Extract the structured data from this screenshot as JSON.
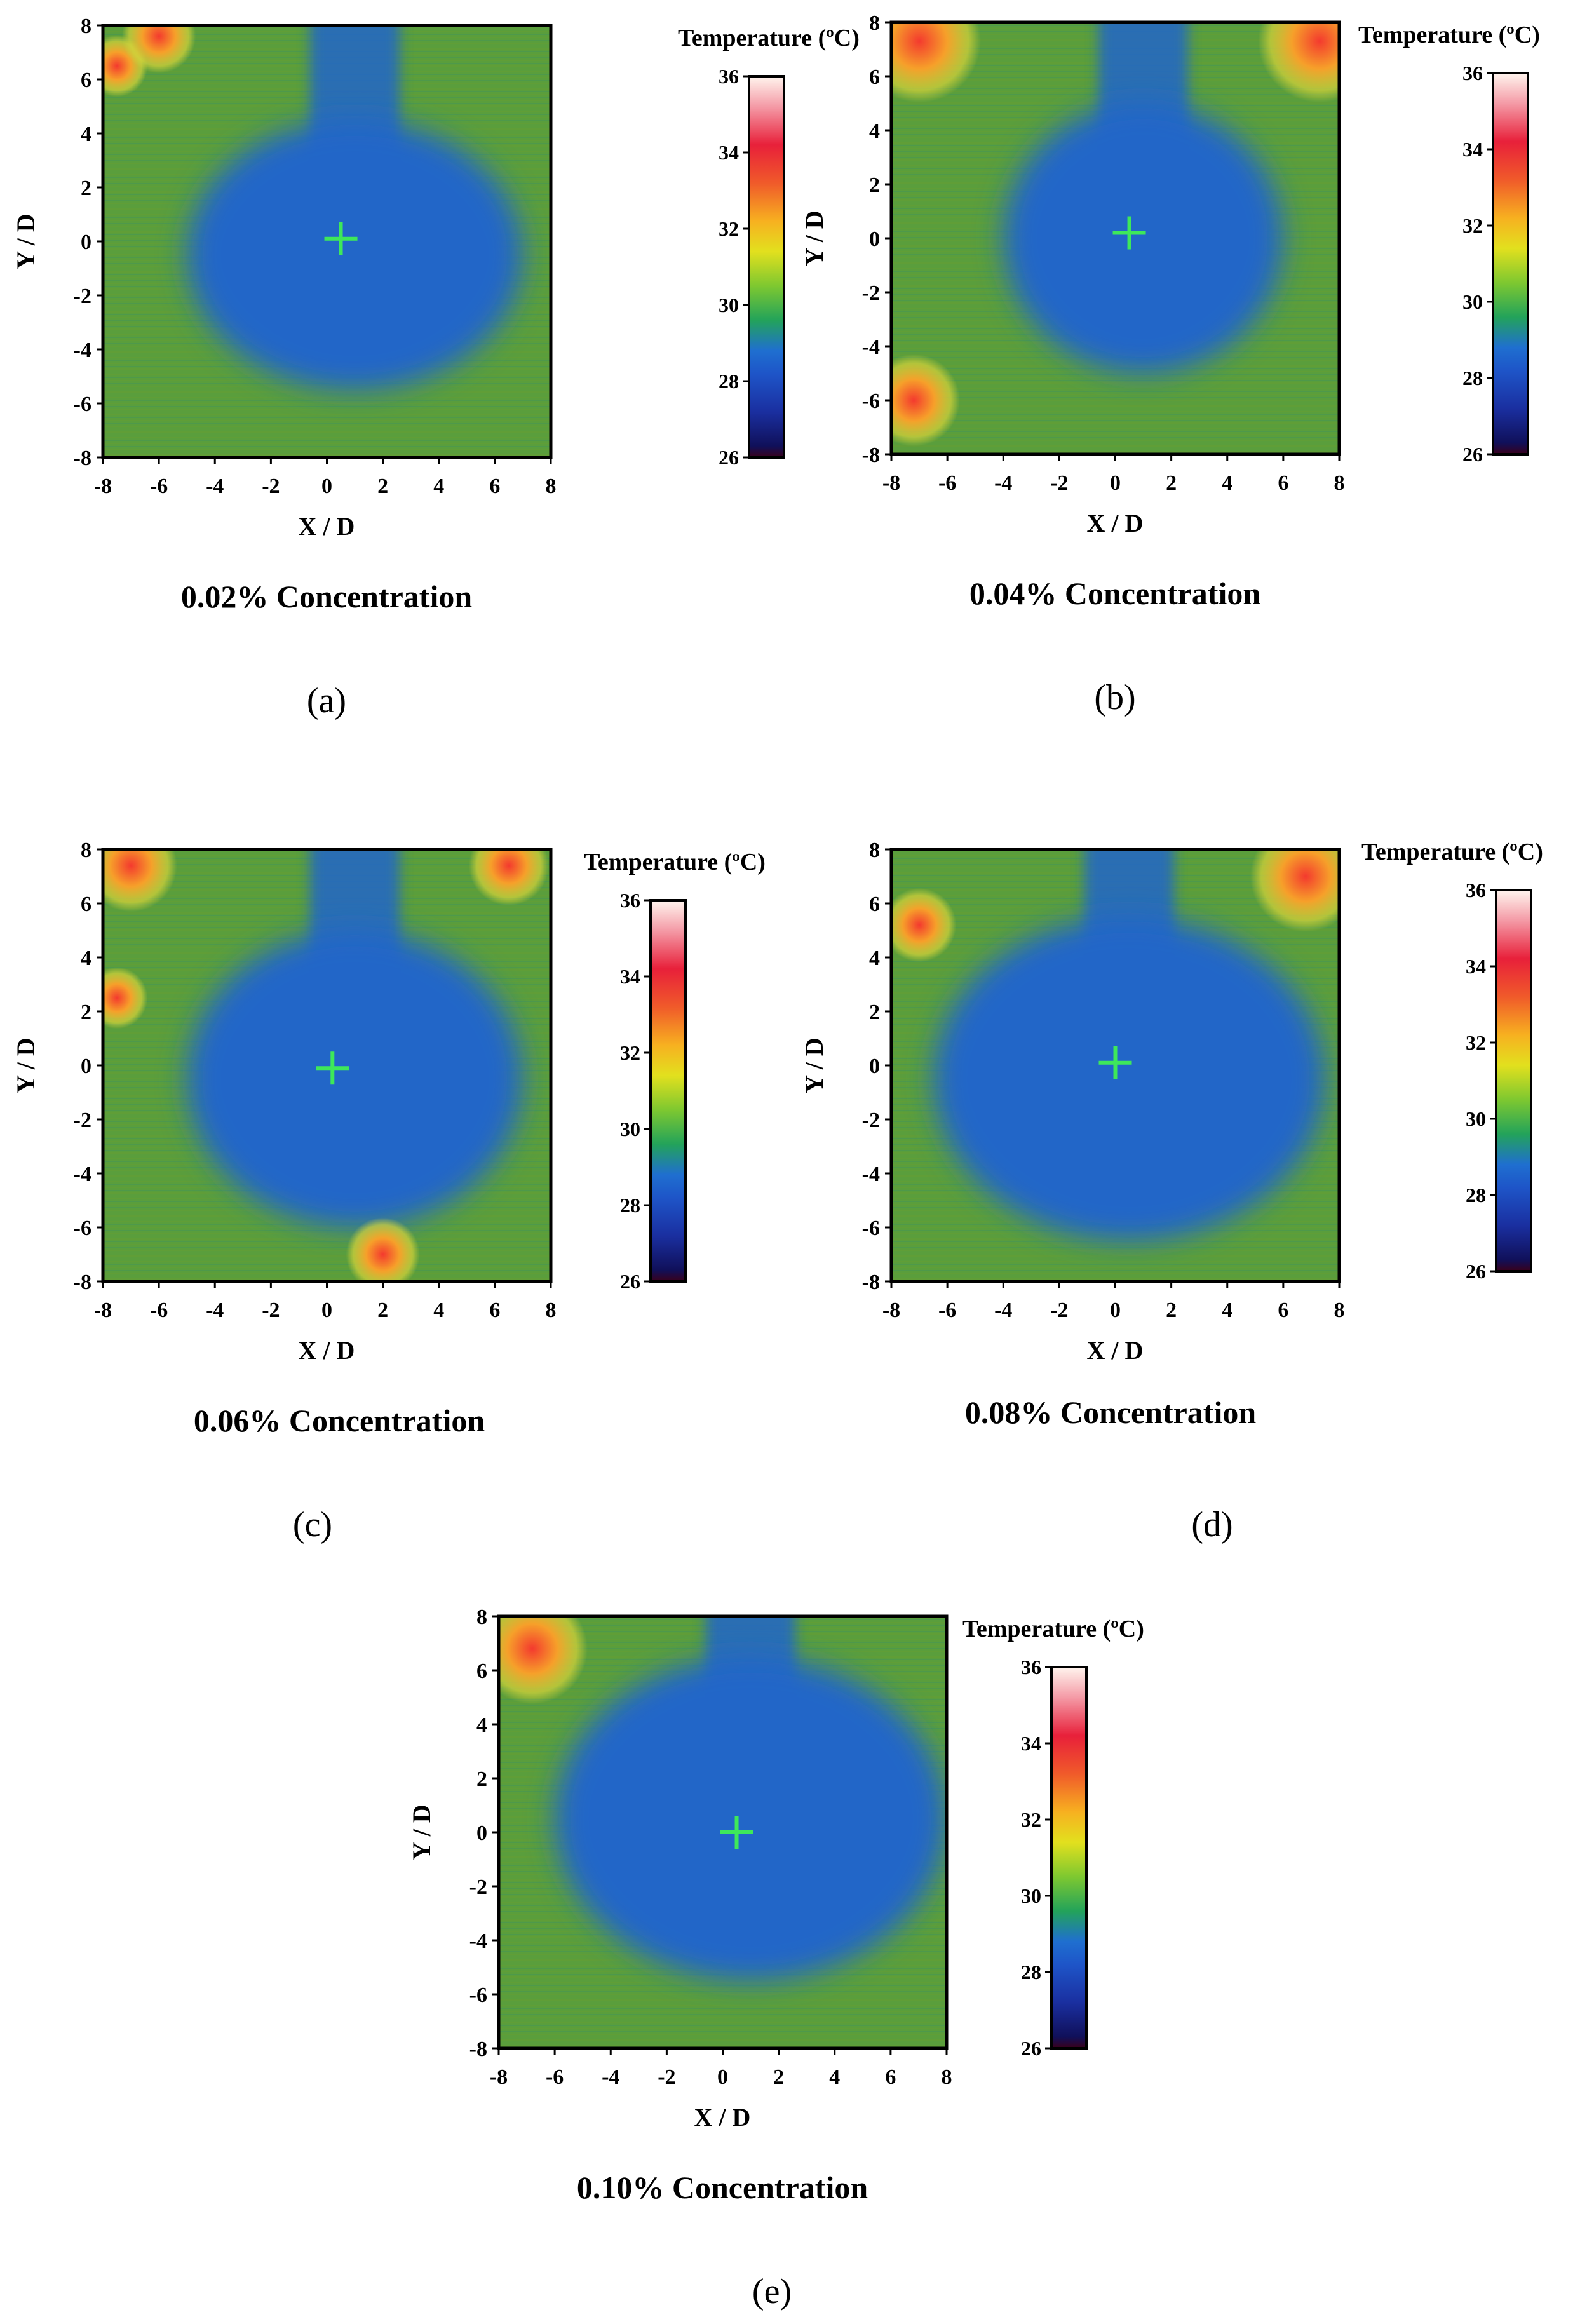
{
  "figure": {
    "type": "thermal-contour-panels"
  },
  "chart_data": [
    {
      "type": "heatmap",
      "panel": "(a)",
      "caption": "0.02% Concentration",
      "xlabel": "X / D",
      "ylabel": "Y / D",
      "xlim": [
        -8,
        8
      ],
      "ylim": [
        -8,
        8
      ],
      "xticks": [
        "-8",
        "-6",
        "-4",
        "-2",
        "0",
        "2",
        "4",
        "6",
        "8"
      ],
      "yticks": [
        "8",
        "6",
        "4",
        "2",
        "0",
        "-2",
        "-4",
        "-6",
        "-8"
      ],
      "marker": {
        "x": 0.5,
        "y": 0.1
      },
      "cool_zone": {
        "cx": 1.0,
        "cy": -0.5,
        "rx": 6.0,
        "ry": 5.0
      },
      "hot_spots": [
        {
          "x": -7.5,
          "y": 6.5,
          "r": 1.0
        },
        {
          "x": -6.0,
          "y": 7.6,
          "r": 1.2
        }
      ],
      "colorbar": {
        "title": "Temperature (ºC)",
        "min": 26,
        "max": 36,
        "ticks": [
          "36",
          "34",
          "32",
          "30",
          "28",
          "26"
        ]
      }
    },
    {
      "type": "heatmap",
      "panel": "(b)",
      "caption": "0.04% Concentration",
      "xlabel": "X / D",
      "ylabel": "Y / D",
      "xlim": [
        -8,
        8
      ],
      "ylim": [
        -8,
        8
      ],
      "xticks": [
        "-8",
        "-6",
        "-4",
        "-2",
        "0",
        "2",
        "4",
        "6",
        "8"
      ],
      "yticks": [
        "8",
        "6",
        "4",
        "2",
        "0",
        "-2",
        "-4",
        "-6",
        "-8"
      ],
      "marker": {
        "x": 0.5,
        "y": 0.2
      },
      "cool_zone": {
        "cx": 1.0,
        "cy": 0.0,
        "rx": 5.0,
        "ry": 5.0
      },
      "hot_spots": [
        {
          "x": -7.0,
          "y": 7.3,
          "r": 2.0
        },
        {
          "x": 7.3,
          "y": 7.3,
          "r": 2.0
        },
        {
          "x": -7.2,
          "y": -6.0,
          "r": 1.5
        }
      ],
      "colorbar": {
        "title": "Temperature (ºC)",
        "min": 26,
        "max": 36,
        "ticks": [
          "36",
          "34",
          "32",
          "30",
          "28",
          "26"
        ]
      }
    },
    {
      "type": "heatmap",
      "panel": "(c)",
      "caption": "0.06% Concentration",
      "xlabel": "X / D",
      "ylabel": "Y / D",
      "xlim": [
        -8,
        8
      ],
      "ylim": [
        -8,
        8
      ],
      "xticks": [
        "-8",
        "-6",
        "-4",
        "-2",
        "0",
        "2",
        "4",
        "6",
        "8"
      ],
      "yticks": [
        "8",
        "6",
        "4",
        "2",
        "0",
        "-2",
        "-4",
        "-6",
        "-8"
      ],
      "marker": {
        "x": 0.2,
        "y": -0.1
      },
      "cool_zone": {
        "cx": 1.0,
        "cy": -0.5,
        "rx": 6.0,
        "ry": 5.5
      },
      "hot_spots": [
        {
          "x": -7.0,
          "y": 7.4,
          "r": 1.5
        },
        {
          "x": 6.5,
          "y": 7.4,
          "r": 1.3
        },
        {
          "x": -7.5,
          "y": 2.5,
          "r": 1.0
        },
        {
          "x": 2.0,
          "y": -7.0,
          "r": 1.2
        }
      ],
      "colorbar": {
        "title": "Temperature (ºC)",
        "min": 26,
        "max": 36,
        "ticks": [
          "36",
          "34",
          "32",
          "30",
          "28",
          "26"
        ]
      }
    },
    {
      "type": "heatmap",
      "panel": "(d)",
      "caption": "0.08% Concentration",
      "xlabel": "X / D",
      "ylabel": "Y / D",
      "xlim": [
        -8,
        8
      ],
      "ylim": [
        -8,
        8
      ],
      "xticks": [
        "-8",
        "-6",
        "-4",
        "-2",
        "0",
        "2",
        "4",
        "6",
        "8"
      ],
      "yticks": [
        "8",
        "6",
        "4",
        "2",
        "0",
        "-2",
        "-4",
        "-6",
        "-8"
      ],
      "marker": {
        "x": 0.0,
        "y": 0.1
      },
      "cool_zone": {
        "cx": 0.5,
        "cy": -0.5,
        "rx": 7.0,
        "ry": 6.0
      },
      "hot_spots": [
        {
          "x": -7.0,
          "y": 5.2,
          "r": 1.2
        },
        {
          "x": 6.8,
          "y": 7.0,
          "r": 1.8
        }
      ],
      "colorbar": {
        "title": "Temperature (ºC)",
        "min": 26,
        "max": 36,
        "ticks": [
          "36",
          "34",
          "32",
          "30",
          "28",
          "26"
        ]
      }
    },
    {
      "type": "heatmap",
      "panel": "(e)",
      "caption": "0.10% Concentration",
      "xlabel": "X / D",
      "ylabel": "Y / D",
      "xlim": [
        -8,
        8
      ],
      "ylim": [
        -8,
        8
      ],
      "xticks": [
        "-8",
        "-6",
        "-4",
        "-2",
        "0",
        "2",
        "4",
        "6",
        "8"
      ],
      "yticks": [
        "8",
        "6",
        "4",
        "2",
        "0",
        "-2",
        "-4",
        "-6",
        "-8"
      ],
      "marker": {
        "x": 0.5,
        "y": 0.0
      },
      "cool_zone": {
        "cx": 1.0,
        "cy": 0.5,
        "rx": 7.0,
        "ry": 6.0
      },
      "hot_spots": [
        {
          "x": -6.8,
          "y": 6.8,
          "r": 1.8
        }
      ],
      "colorbar": {
        "title": "Temperature (ºC)",
        "min": 26,
        "max": 36,
        "ticks": [
          "36",
          "34",
          "32",
          "30",
          "28",
          "26"
        ]
      }
    }
  ]
}
